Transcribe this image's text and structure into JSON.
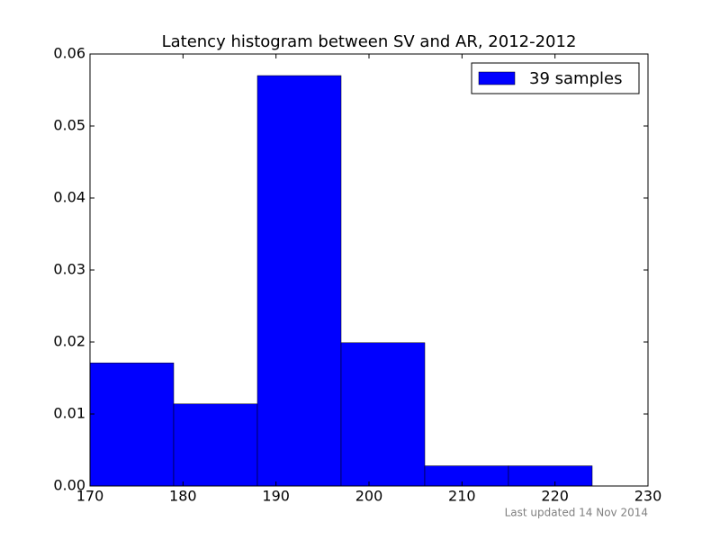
{
  "chart_data": {
    "type": "histogram",
    "title": "Latency histogram between SV and AR, 2012-2012",
    "bins": [
      170,
      179,
      188,
      197,
      206,
      215,
      224
    ],
    "values": [
      0.0171,
      0.0114,
      0.057,
      0.0199,
      0.0028,
      0.0028
    ],
    "series_name": "39 samples",
    "color": "#0000ff",
    "xlim": [
      170,
      230
    ],
    "xticks": [
      170,
      180,
      190,
      200,
      210,
      220,
      230
    ],
    "ylim": [
      0,
      0.06
    ],
    "yticks": [
      {
        "value": 0,
        "label": "0.00"
      },
      0.01,
      0.02,
      0.03,
      0.04,
      0.05,
      0.06
    ],
    "legend": "upper right",
    "footnote": "Last updated 14 Nov 2014"
  }
}
